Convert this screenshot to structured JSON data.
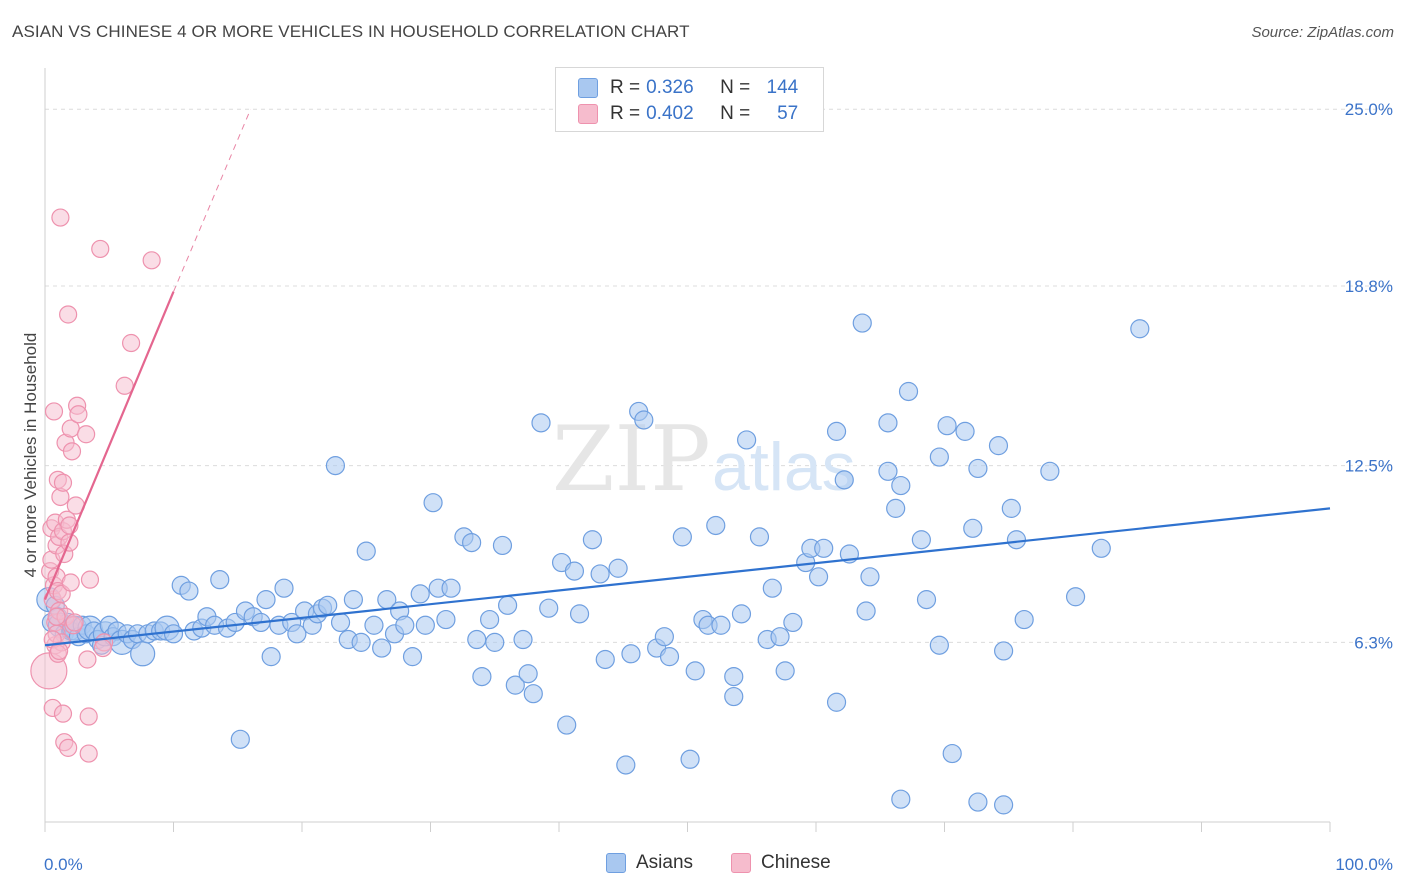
{
  "title": "ASIAN VS CHINESE 4 OR MORE VEHICLES IN HOUSEHOLD CORRELATION CHART",
  "source": "Source: ZipAtlas.com",
  "watermark": {
    "zip": "ZIP",
    "atlas": "atlas"
  },
  "legend": {
    "rows": [
      {
        "r_label": "R =",
        "r_value": "0.326",
        "n_label": "N =",
        "n_value": "144"
      },
      {
        "r_label": "R =",
        "r_value": "0.402",
        "n_label": "N =",
        "n_value": "57"
      }
    ]
  },
  "bottom_legend": {
    "asians": "Asians",
    "chinese": "Chinese"
  },
  "colors": {
    "asian_fill": "#a9c8f0",
    "asian_stroke": "#6f9fe0",
    "asian_line": "#2f72cf",
    "chinese_fill": "#f6bccd",
    "chinese_stroke": "#ee92ae",
    "chinese_line": "#e4668f",
    "tick_label": "#3b73c9",
    "grid": "#dcdcdc"
  },
  "chart_data": {
    "type": "scatter",
    "ylabel": "4 or more Vehicles in Household",
    "xlabel": "",
    "xlim": [
      0,
      100
    ],
    "ylim": [
      0,
      26.2
    ],
    "x_tick_labels": [
      {
        "value": 0,
        "label": "0.0%"
      },
      {
        "value": 100,
        "label": "100.0%"
      }
    ],
    "y_ticks": [
      {
        "value": 6.3,
        "label": "6.3%"
      },
      {
        "value": 12.5,
        "label": "12.5%"
      },
      {
        "value": 18.8,
        "label": "18.8%"
      },
      {
        "value": 25.0,
        "label": "25.0%"
      }
    ],
    "grid": "horizontal dashed",
    "legend_position": "top-center",
    "trend_lines": [
      {
        "series": "Asians",
        "x": [
          0,
          100
        ],
        "y": [
          6.2,
          11.0
        ],
        "style": "solid"
      },
      {
        "series": "Chinese",
        "x": [
          0,
          10
        ],
        "y": [
          7.8,
          18.6
        ],
        "style": "solid"
      },
      {
        "series": "Chinese",
        "x": [
          10,
          16
        ],
        "y": [
          18.6,
          25.0
        ],
        "style": "dashed"
      }
    ],
    "series": [
      {
        "name": "Asians",
        "points": [
          [
            0.3,
            7.8
          ],
          [
            0.5,
            7.0
          ],
          [
            0.8,
            7.6
          ],
          [
            1.0,
            7.2
          ],
          [
            1.2,
            6.9
          ],
          [
            1.5,
            6.6
          ],
          [
            1.8,
            7.0
          ],
          [
            2.0,
            6.7
          ],
          [
            2.3,
            6.8
          ],
          [
            2.6,
            6.5
          ],
          [
            2.9,
            6.9
          ],
          [
            3.2,
            6.6
          ],
          [
            3.5,
            6.8
          ],
          [
            3.8,
            6.7
          ],
          [
            4.1,
            6.4
          ],
          [
            4.4,
            6.2
          ],
          [
            4.7,
            6.6
          ],
          [
            5.0,
            6.9
          ],
          [
            5.3,
            6.5
          ],
          [
            5.6,
            6.7
          ],
          [
            6.0,
            6.3
          ],
          [
            6.4,
            6.6
          ],
          [
            6.8,
            6.4
          ],
          [
            7.2,
            6.6
          ],
          [
            7.6,
            5.9
          ],
          [
            8.0,
            6.6
          ],
          [
            8.5,
            6.7
          ],
          [
            9.0,
            6.7
          ],
          [
            9.5,
            6.8
          ],
          [
            10.0,
            6.6
          ],
          [
            10.6,
            8.3
          ],
          [
            11.2,
            8.1
          ],
          [
            11.6,
            6.7
          ],
          [
            12.2,
            6.8
          ],
          [
            12.6,
            7.2
          ],
          [
            13.2,
            6.9
          ],
          [
            13.6,
            8.5
          ],
          [
            14.2,
            6.8
          ],
          [
            14.8,
            7.0
          ],
          [
            15.2,
            2.9
          ],
          [
            15.6,
            7.4
          ],
          [
            16.2,
            7.2
          ],
          [
            16.8,
            7.0
          ],
          [
            17.2,
            7.8
          ],
          [
            17.6,
            5.8
          ],
          [
            18.2,
            6.9
          ],
          [
            18.6,
            8.2
          ],
          [
            19.2,
            7.0
          ],
          [
            19.6,
            6.6
          ],
          [
            20.2,
            7.4
          ],
          [
            20.8,
            6.9
          ],
          [
            21.2,
            7.3
          ],
          [
            21.6,
            7.5
          ],
          [
            22.0,
            7.6
          ],
          [
            22.6,
            12.5
          ],
          [
            23.0,
            7.0
          ],
          [
            23.6,
            6.4
          ],
          [
            24.0,
            7.8
          ],
          [
            24.6,
            6.3
          ],
          [
            25.0,
            9.5
          ],
          [
            25.6,
            6.9
          ],
          [
            26.2,
            6.1
          ],
          [
            26.6,
            7.8
          ],
          [
            27.2,
            6.6
          ],
          [
            27.6,
            7.4
          ],
          [
            28.0,
            6.9
          ],
          [
            28.6,
            5.8
          ],
          [
            29.2,
            8.0
          ],
          [
            29.6,
            6.9
          ],
          [
            30.2,
            11.2
          ],
          [
            30.6,
            8.2
          ],
          [
            31.2,
            7.1
          ],
          [
            31.6,
            8.2
          ],
          [
            32.6,
            10.0
          ],
          [
            33.2,
            9.8
          ],
          [
            33.6,
            6.4
          ],
          [
            34.0,
            5.1
          ],
          [
            34.6,
            7.1
          ],
          [
            35.0,
            6.3
          ],
          [
            35.6,
            9.7
          ],
          [
            36.0,
            7.6
          ],
          [
            36.6,
            4.8
          ],
          [
            37.2,
            6.4
          ],
          [
            37.6,
            5.2
          ],
          [
            38.0,
            4.5
          ],
          [
            38.6,
            14.0
          ],
          [
            39.2,
            7.5
          ],
          [
            40.2,
            9.1
          ],
          [
            40.6,
            3.4
          ],
          [
            41.2,
            8.8
          ],
          [
            41.6,
            7.3
          ],
          [
            42.6,
            9.9
          ],
          [
            43.2,
            8.7
          ],
          [
            43.6,
            5.7
          ],
          [
            44.6,
            8.9
          ],
          [
            45.2,
            2.0
          ],
          [
            45.6,
            5.9
          ],
          [
            46.2,
            14.4
          ],
          [
            46.6,
            14.1
          ],
          [
            47.6,
            6.1
          ],
          [
            48.2,
            6.5
          ],
          [
            48.6,
            5.8
          ],
          [
            49.6,
            10.0
          ],
          [
            50.2,
            2.2
          ],
          [
            50.6,
            5.3
          ],
          [
            51.2,
            7.1
          ],
          [
            51.6,
            6.9
          ],
          [
            52.2,
            10.4
          ],
          [
            52.6,
            6.9
          ],
          [
            53.6,
            4.4
          ],
          [
            53.6,
            5.1
          ],
          [
            54.2,
            7.3
          ],
          [
            54.6,
            13.4
          ],
          [
            55.6,
            10.0
          ],
          [
            56.2,
            6.4
          ],
          [
            56.6,
            8.2
          ],
          [
            57.2,
            6.5
          ],
          [
            57.6,
            5.3
          ],
          [
            58.2,
            7.0
          ],
          [
            59.2,
            9.1
          ],
          [
            59.6,
            9.6
          ],
          [
            60.2,
            8.6
          ],
          [
            60.6,
            9.6
          ],
          [
            61.6,
            4.2
          ],
          [
            61.6,
            13.7
          ],
          [
            62.2,
            12.0
          ],
          [
            62.6,
            9.4
          ],
          [
            63.6,
            17.5
          ],
          [
            63.9,
            7.4
          ],
          [
            64.2,
            8.6
          ],
          [
            65.6,
            12.3
          ],
          [
            65.6,
            14.0
          ],
          [
            66.2,
            11.0
          ],
          [
            66.6,
            11.8
          ],
          [
            67.2,
            15.1
          ],
          [
            68.2,
            9.9
          ],
          [
            68.6,
            7.8
          ],
          [
            69.6,
            12.8
          ],
          [
            69.6,
            6.2
          ],
          [
            70.2,
            13.9
          ],
          [
            70.6,
            2.4
          ],
          [
            71.6,
            13.7
          ],
          [
            72.2,
            10.3
          ],
          [
            72.6,
            12.4
          ],
          [
            74.2,
            13.2
          ],
          [
            74.6,
            6.0
          ],
          [
            75.2,
            11.0
          ],
          [
            75.6,
            9.9
          ],
          [
            76.2,
            7.1
          ],
          [
            78.2,
            12.3
          ],
          [
            80.2,
            7.9
          ],
          [
            82.2,
            9.6
          ],
          [
            85.2,
            17.3
          ],
          [
            66.6,
            0.8
          ],
          [
            72.6,
            0.7
          ],
          [
            74.6,
            0.6
          ]
        ]
      },
      {
        "name": "Chinese",
        "points": [
          [
            0.3,
            5.3
          ],
          [
            0.4,
            8.8
          ],
          [
            0.5,
            9.2
          ],
          [
            0.5,
            10.3
          ],
          [
            0.6,
            4.0
          ],
          [
            0.6,
            7.8
          ],
          [
            0.7,
            8.3
          ],
          [
            0.7,
            14.4
          ],
          [
            0.8,
            6.2
          ],
          [
            0.8,
            7.0
          ],
          [
            0.8,
            10.5
          ],
          [
            0.9,
            6.6
          ],
          [
            0.9,
            8.6
          ],
          [
            0.9,
            9.7
          ],
          [
            1.0,
            8.1
          ],
          [
            1.0,
            12.0
          ],
          [
            1.1,
            10.0
          ],
          [
            1.1,
            7.4
          ],
          [
            1.2,
            21.2
          ],
          [
            1.2,
            11.4
          ],
          [
            1.3,
            6.3
          ],
          [
            1.3,
            8.0
          ],
          [
            1.4,
            3.8
          ],
          [
            1.4,
            10.2
          ],
          [
            1.5,
            2.8
          ],
          [
            1.5,
            9.4
          ],
          [
            1.6,
            7.2
          ],
          [
            1.6,
            13.3
          ],
          [
            1.7,
            10.6
          ],
          [
            1.8,
            2.6
          ],
          [
            1.8,
            17.8
          ],
          [
            1.9,
            9.8
          ],
          [
            1.9,
            10.4
          ],
          [
            2.0,
            8.4
          ],
          [
            2.0,
            13.8
          ],
          [
            2.1,
            13.0
          ],
          [
            2.2,
            6.9
          ],
          [
            2.3,
            7.0
          ],
          [
            2.5,
            14.6
          ],
          [
            2.6,
            14.3
          ],
          [
            3.2,
            13.6
          ],
          [
            3.3,
            5.7
          ],
          [
            3.4,
            3.7
          ],
          [
            3.4,
            2.4
          ],
          [
            3.5,
            8.5
          ],
          [
            4.3,
            20.1
          ],
          [
            4.6,
            6.3
          ],
          [
            4.5,
            6.1
          ],
          [
            6.2,
            15.3
          ],
          [
            6.7,
            16.8
          ],
          [
            8.3,
            19.7
          ],
          [
            0.6,
            6.4
          ],
          [
            1.0,
            5.9
          ],
          [
            1.4,
            11.9
          ],
          [
            2.4,
            11.1
          ],
          [
            1.1,
            6.0
          ],
          [
            0.9,
            7.2
          ]
        ]
      }
    ]
  }
}
